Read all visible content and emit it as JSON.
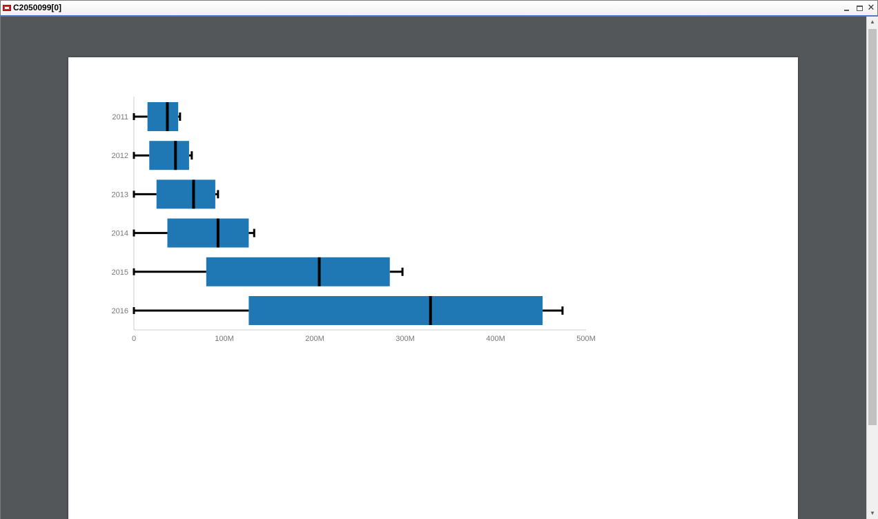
{
  "window": {
    "title": "C2050099[0]",
    "icon": "pdf-icon",
    "minimize_icon": "minimize-icon",
    "restore_icon": "restore-icon",
    "close_glyph": "✕"
  },
  "scrollbar": {
    "up_glyph": "▲",
    "down_glyph": "▼"
  },
  "colors": {
    "viewer_bg": "#53575a",
    "box_fill": "#1f77b4",
    "whisker": "#000000",
    "axis_text": "#777777"
  },
  "chart_data": {
    "type": "boxplot",
    "orientation": "horizontal",
    "title": "",
    "xlabel": "",
    "ylabel": "",
    "xlim": [
      0,
      500000000
    ],
    "x_ticks": [
      0,
      100000000,
      200000000,
      300000000,
      400000000,
      500000000
    ],
    "x_tick_labels": [
      "0",
      "100M",
      "200M",
      "300M",
      "400M",
      "500M"
    ],
    "categories": [
      "2011",
      "2012",
      "2013",
      "2014",
      "2015",
      "2016"
    ],
    "series": [
      {
        "name": "2011",
        "min": 0,
        "q1": 15000000,
        "median": 37000000,
        "q3": 49000000,
        "max": 51000000
      },
      {
        "name": "2012",
        "min": 0,
        "q1": 17000000,
        "median": 46000000,
        "q3": 61000000,
        "max": 64000000
      },
      {
        "name": "2013",
        "min": 0,
        "q1": 25000000,
        "median": 66000000,
        "q3": 90000000,
        "max": 93000000
      },
      {
        "name": "2014",
        "min": 0,
        "q1": 37000000,
        "median": 93000000,
        "q3": 127000000,
        "max": 133000000
      },
      {
        "name": "2015",
        "min": 0,
        "q1": 80000000,
        "median": 205000000,
        "q3": 283000000,
        "max": 297000000
      },
      {
        "name": "2016",
        "min": 0,
        "q1": 127000000,
        "median": 328000000,
        "q3": 452000000,
        "max": 474000000
      }
    ],
    "grid": false,
    "legend": "none"
  }
}
